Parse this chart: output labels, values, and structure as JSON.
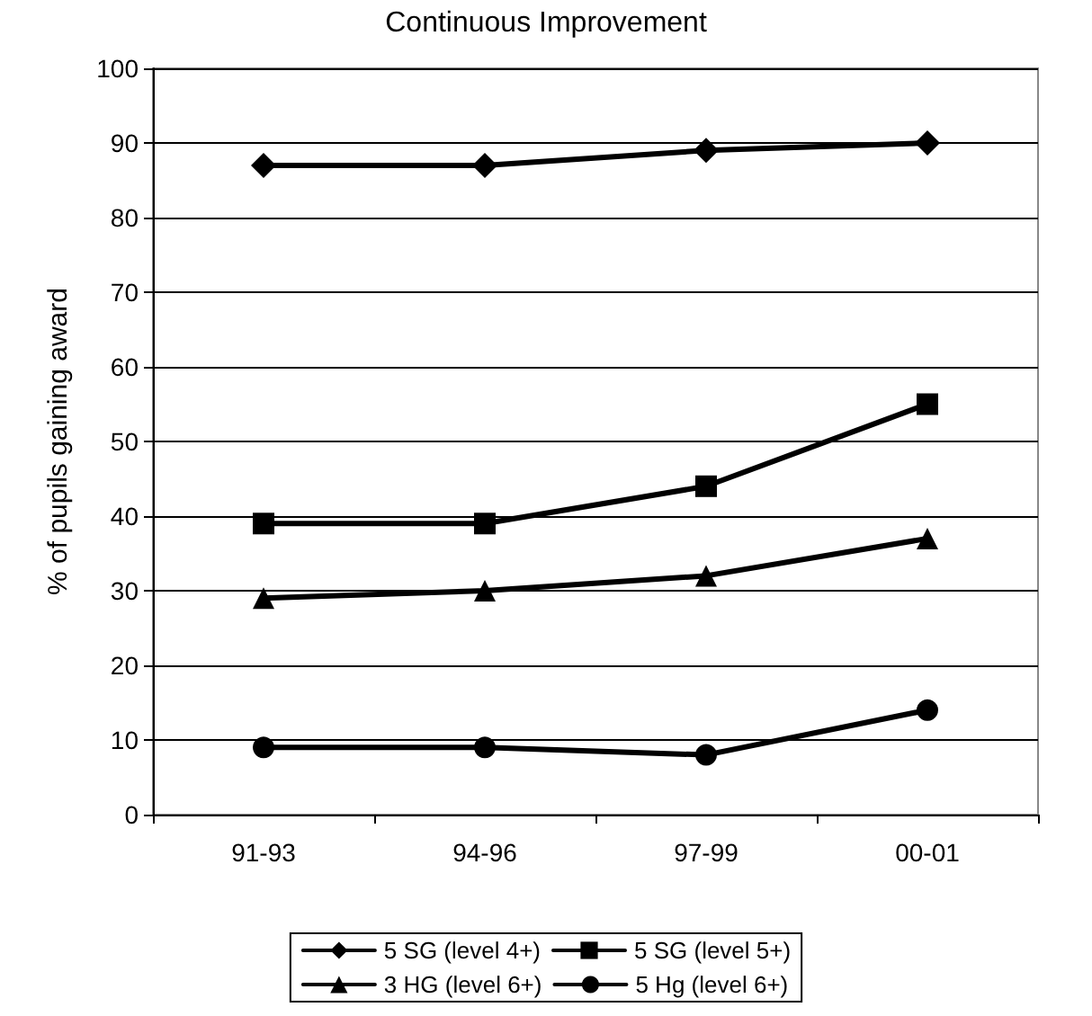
{
  "chart_data": {
    "type": "line",
    "title": "Continuous Improvement",
    "ylabel": "% of pupils gaining award",
    "categories": [
      "91-93",
      "94-96",
      "97-99",
      "00-01"
    ],
    "series": [
      {
        "name": "5 SG (level 4+)",
        "color": "#000000",
        "marker": "diamond",
        "values": [
          87,
          87,
          89,
          90
        ]
      },
      {
        "name": "5 SG (level 5+)",
        "color": "#000000",
        "marker": "square",
        "values": [
          39,
          39,
          44,
          55
        ]
      },
      {
        "name": "3 HG (level 6+)",
        "color": "#000000",
        "marker": "triangle",
        "values": [
          29,
          30,
          32,
          37
        ]
      },
      {
        "name": "5 Hg (level 6+)",
        "color": "#000000",
        "marker": "circle",
        "values": [
          9,
          9,
          8,
          14
        ]
      }
    ],
    "ylim": [
      0,
      100
    ],
    "yticks": [
      0,
      10,
      20,
      30,
      40,
      50,
      60,
      70,
      80,
      90,
      100
    ],
    "grid": "y",
    "legend": "bottom",
    "line_style": "solid"
  }
}
